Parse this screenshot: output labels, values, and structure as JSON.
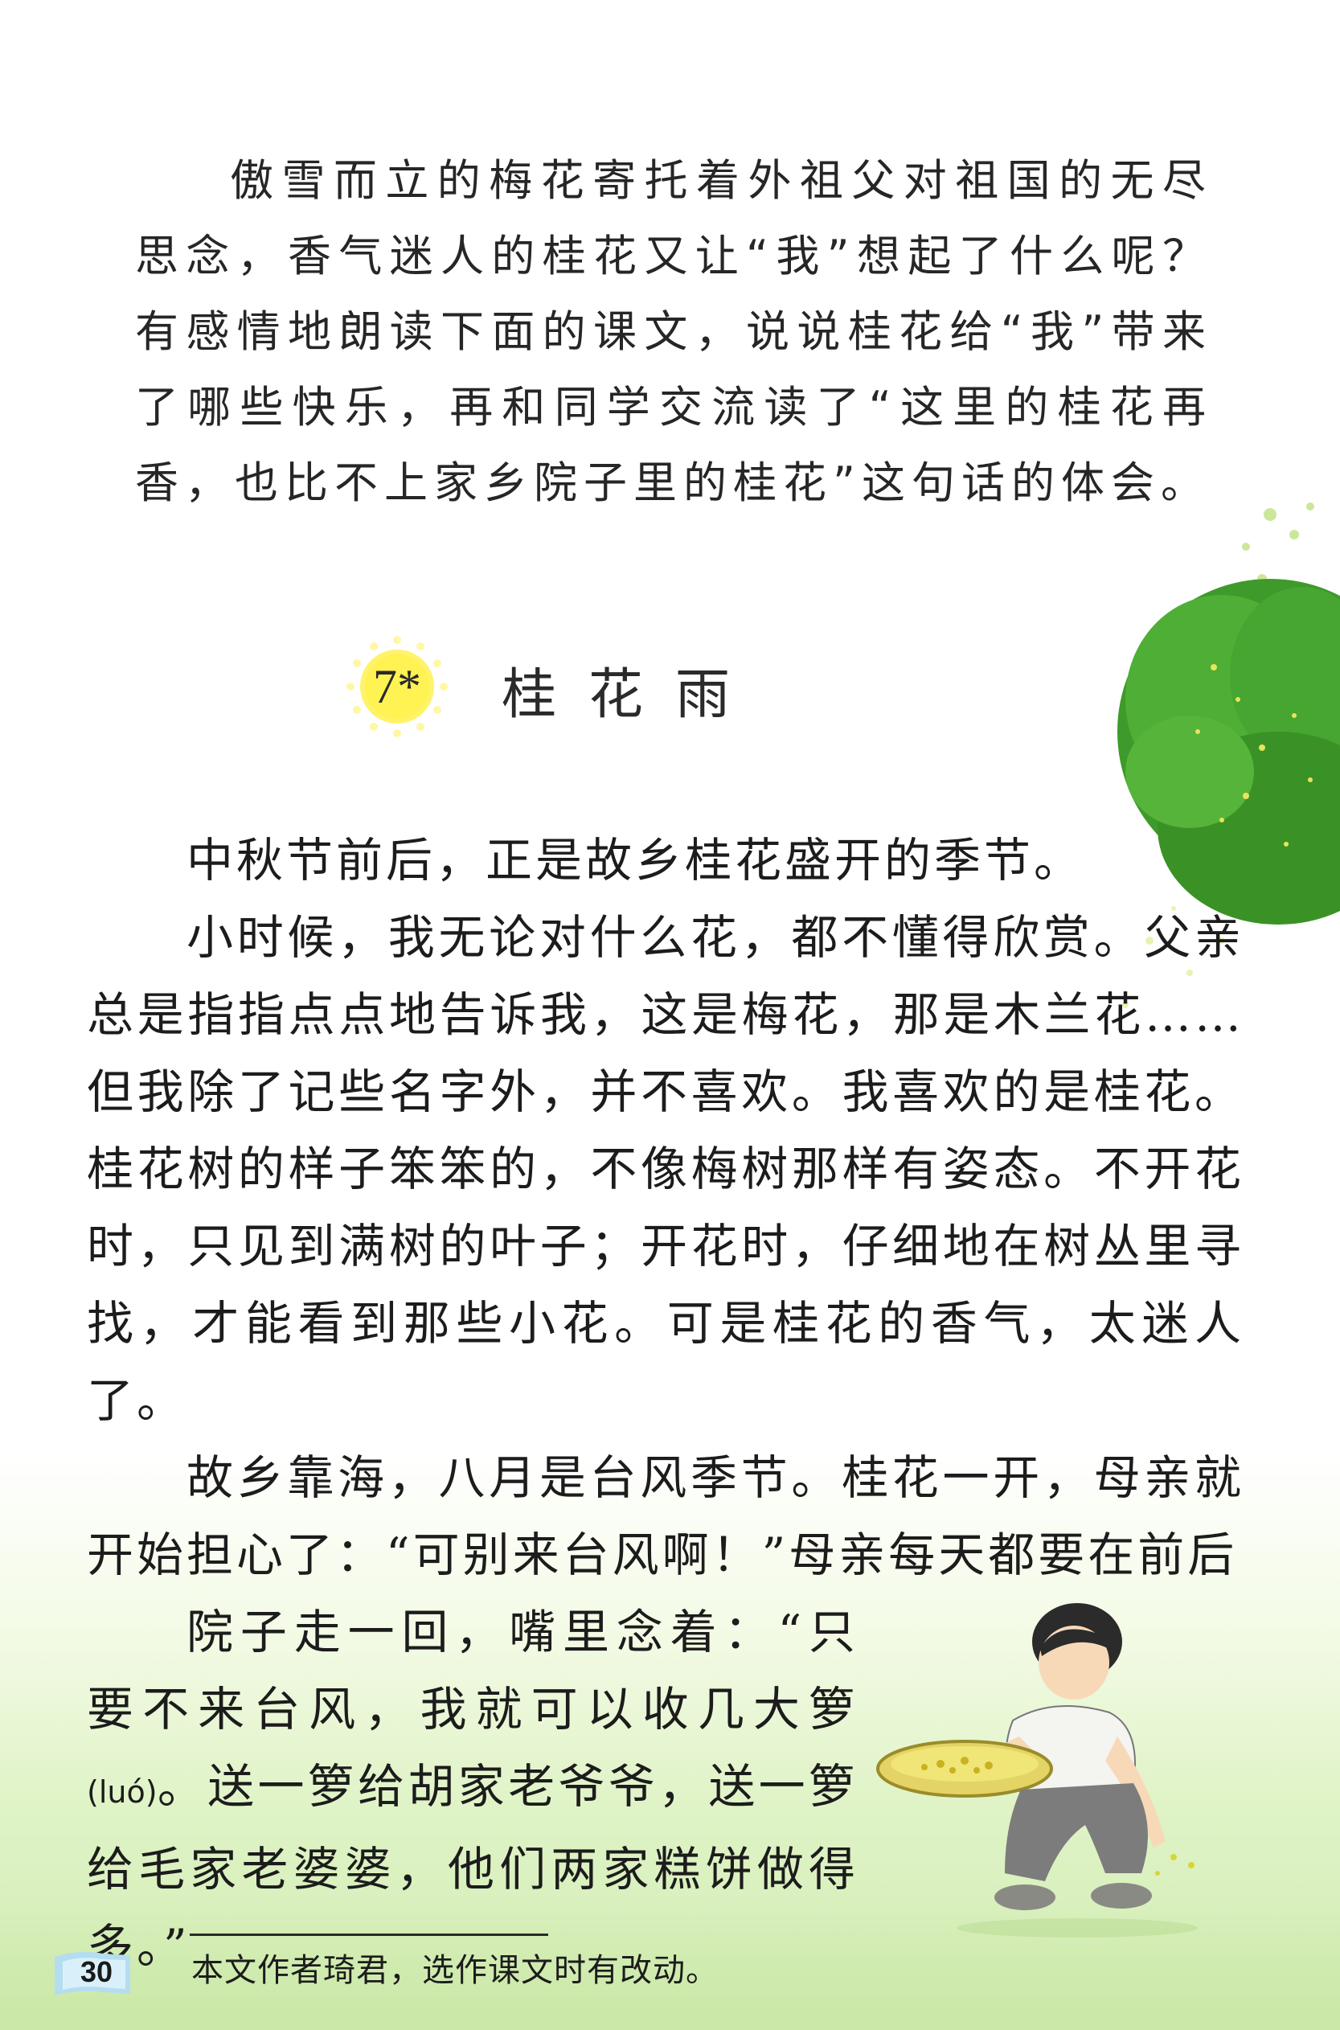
{
  "intro": {
    "text": "傲雪而立的梅花寄托着外祖父对祖国的无尽思念，香气迷人的桂花又让“我”想起了什么呢？有感情地朗读下面的课文，说说桂花给“我”带来了哪些快乐，再和同学交流读了“这里的桂花再香，也比不上家乡院子里的桂花”这句话的体会。"
  },
  "lesson": {
    "number": "7*",
    "title": "桂花雨"
  },
  "body": {
    "p1": "中秋节前后，正是故乡桂花盛开的季节。",
    "p2": "小时候，我无论对什么花，都不懂得欣赏。父亲总是指指点点地告诉我，这是梅花，那是木兰花……但我除了记些名字外，并不喜欢。我喜欢的是桂花。桂花树的样子笨笨的，不像梅树那样有姿态。不开花时，只见到满树的叶子；开花时，仔细地在树丛里寻找，才能看到那些小花。可是桂花的香气，太迷人了。",
    "p3": "故乡靠海，八月是台风季节。桂花一开，母亲就开始担心了：“可别来台风啊！”母亲每天都要在前后",
    "p4_a": "院子走一回，嘴里念着：“只要不来台风，我就可以收几大箩",
    "p4_pinyin": "(luó)",
    "p4_b": "。送一箩给胡家老爷爷，送一箩给毛家老婆婆，他们两家糕饼做得多。”"
  },
  "footer": {
    "page_number": "30",
    "footnote": "本文作者琦君，选作课文时有改动。"
  },
  "icons": {
    "lesson_badge": "sun-badge-icon",
    "tree": "osmanthus-tree-illustration",
    "boy": "boy-collecting-flowers-illustration",
    "page_tab": "book-page-icon"
  },
  "colors": {
    "badge_yellow": "#fff36a",
    "tree_green": "#3f9a2b",
    "meadow_green": "#d6eeb8"
  }
}
